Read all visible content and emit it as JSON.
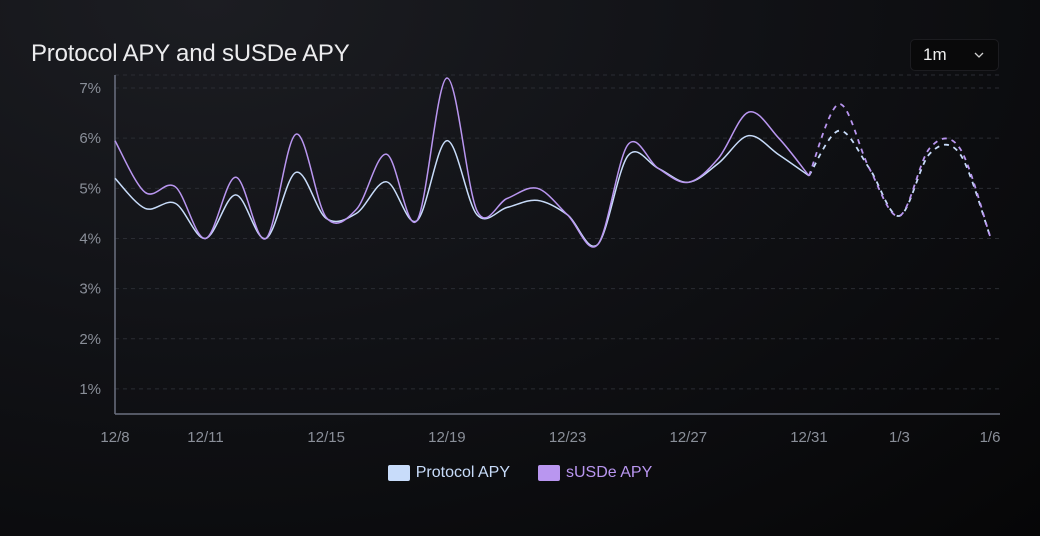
{
  "title": "Protocol APY and sUSDe APY",
  "range_select": {
    "value": "1m",
    "icon": "chevron-down-icon"
  },
  "colors": {
    "protocol": "#c8dcfa",
    "susde": "#b996f0",
    "grid": "#2a2c33",
    "axis": "#6b7080"
  },
  "chart_data": {
    "type": "line",
    "title": "Protocol APY and sUSDe APY",
    "x": [
      "12/8",
      "12/9",
      "12/10",
      "12/11",
      "12/12",
      "12/13",
      "12/14",
      "12/15",
      "12/16",
      "12/17",
      "12/18",
      "12/19",
      "12/20",
      "12/21",
      "12/22",
      "12/23",
      "12/24",
      "12/25",
      "12/26",
      "12/27",
      "12/28",
      "12/29",
      "12/30",
      "12/31",
      "1/1",
      "1/2",
      "1/3",
      "1/4",
      "1/5",
      "1/6"
    ],
    "x_tick_labels": [
      "12/8",
      "12/11",
      "12/15",
      "12/19",
      "12/23",
      "12/27",
      "12/31",
      "1/3",
      "1/6"
    ],
    "y_tick_labels": [
      "1%",
      "2%",
      "3%",
      "4%",
      "5%",
      "6%",
      "7%"
    ],
    "y_ticks": [
      1,
      2,
      3,
      4,
      5,
      6,
      7
    ],
    "ylim": [
      0.5,
      7.26
    ],
    "grid": "horizontal dashed",
    "projected_from": "12/31",
    "legend_position": "bottom",
    "series": [
      {
        "name": "Protocol APY",
        "color": "#c8dcfa",
        "values": [
          5.2,
          4.6,
          4.7,
          4.0,
          4.87,
          4.0,
          5.32,
          4.4,
          4.5,
          5.13,
          4.35,
          5.95,
          4.47,
          4.62,
          4.76,
          4.47,
          3.88,
          5.65,
          5.4,
          5.12,
          5.5,
          6.05,
          5.67,
          5.25,
          6.15,
          5.4,
          4.45,
          5.69,
          5.69,
          4.05
        ]
      },
      {
        "name": "sUSDe APY",
        "color": "#b996f0",
        "values": [
          5.95,
          4.92,
          5.03,
          4.0,
          5.22,
          4.0,
          6.08,
          4.42,
          4.58,
          5.68,
          4.35,
          7.2,
          4.55,
          4.8,
          5.0,
          4.47,
          3.88,
          5.87,
          5.4,
          5.12,
          5.6,
          6.52,
          6.0,
          5.25,
          6.68,
          5.4,
          4.45,
          5.8,
          5.8,
          4.05
        ]
      }
    ]
  }
}
